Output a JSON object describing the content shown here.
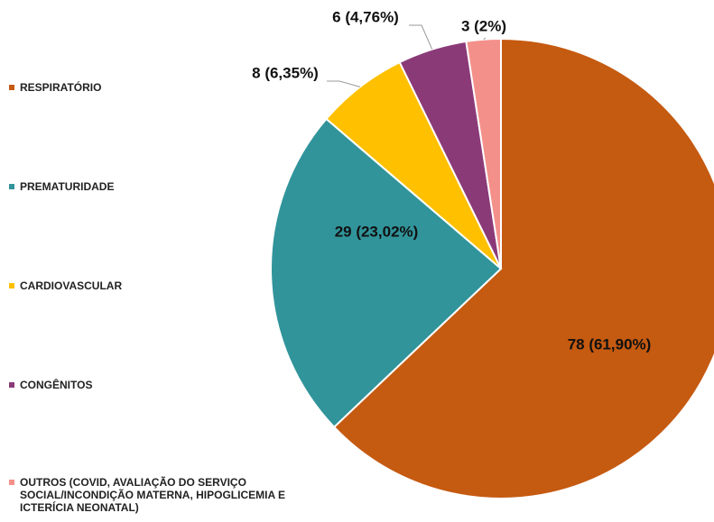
{
  "chart_data": {
    "type": "pie",
    "categories": [
      "RESPIRATÓRIO",
      "PREMATURIDADE",
      "CARDIOVASCULAR",
      "CONGÊNITOS",
      "OUTROS (COVID, AVALIAÇÃO DO SERVIÇO SOCIAL/INCONDIÇÃO MATERNA, HIPOGLICEMIA E ICTERÍCIA NEONATAL)"
    ],
    "values": [
      78,
      29,
      8,
      6,
      3
    ],
    "value_labels": [
      "78 (61,90%)",
      "29 (23,02%)",
      "8 (6,35%)",
      "6 (4,76%)",
      "3 (2%)"
    ],
    "colors": [
      "#c55a11",
      "#31949b",
      "#ffc000",
      "#8b3a78",
      "#f4908a"
    ],
    "legend": "left"
  }
}
